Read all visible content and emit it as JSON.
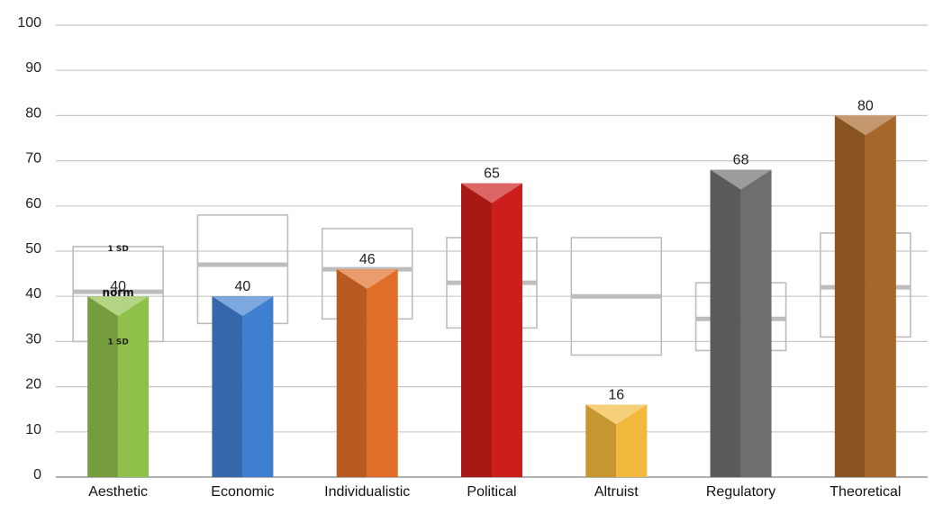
{
  "chart_data": {
    "type": "bar",
    "title": "",
    "xlabel": "",
    "ylabel": "",
    "ylim": [
      0,
      100
    ],
    "yticks": [
      0,
      10,
      20,
      30,
      40,
      50,
      60,
      70,
      80,
      90,
      100
    ],
    "grid": true,
    "legend": "none",
    "categories": [
      "Aesthetic",
      "Economic",
      "Individualistic",
      "Political",
      "Altruist",
      "Regulatory",
      "Theoretical"
    ],
    "values": [
      40,
      40,
      46,
      65,
      16,
      68,
      80
    ],
    "value_labels": [
      "40",
      "40",
      "46",
      "65",
      "16",
      "68",
      "80"
    ],
    "colors": [
      "#8fc04a",
      "#3f7fcf",
      "#e06e28",
      "#cc1e1a",
      "#f2b83c",
      "#6e6e6e",
      "#a8672a"
    ],
    "norm_bands": [
      {
        "low": 30,
        "norm": 41,
        "high": 51
      },
      {
        "low": 34,
        "norm": 47,
        "high": 58
      },
      {
        "low": 35,
        "norm": 46,
        "high": 55
      },
      {
        "low": 33,
        "norm": 43,
        "high": 53
      },
      {
        "low": 27,
        "norm": 40,
        "high": 53
      },
      {
        "low": 28,
        "norm": 35,
        "high": 43
      },
      {
        "low": 31,
        "norm": 42,
        "high": 54
      }
    ],
    "annotations": {
      "sd_upper": "1 SD",
      "norm": "norm",
      "sd_lower": "1 SD"
    }
  }
}
